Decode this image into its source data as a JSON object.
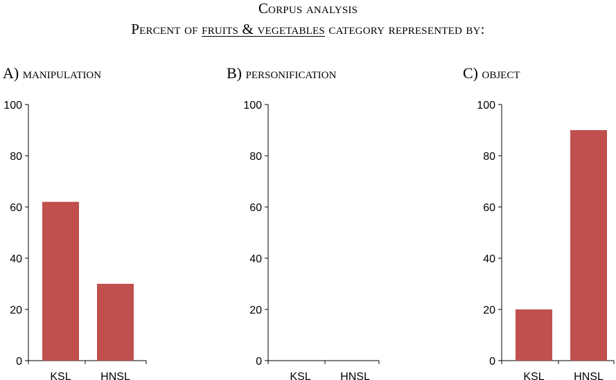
{
  "header": {
    "title": "Corpus analysis",
    "subtitle_prefix": "Percent of ",
    "subtitle_underlined": "fruits & vegetables",
    "subtitle_suffix": " category represented by:"
  },
  "colors": {
    "bar": "#c0504d",
    "axis": "#000000"
  },
  "chart_data": [
    {
      "type": "bar",
      "title": "A) manipulation",
      "categories": [
        "KSL",
        "HNSL"
      ],
      "values": [
        62,
        30
      ],
      "ylim": [
        0,
        100
      ],
      "yticks": [
        0,
        20,
        40,
        60,
        80,
        100
      ],
      "xlabel": "",
      "ylabel": "",
      "grid": false
    },
    {
      "type": "bar",
      "title": "B) personification",
      "categories": [
        "KSL",
        "HNSL"
      ],
      "values": [
        0,
        0
      ],
      "ylim": [
        0,
        100
      ],
      "yticks": [
        0,
        20,
        40,
        60,
        80,
        100
      ],
      "xlabel": "",
      "ylabel": "",
      "grid": false
    },
    {
      "type": "bar",
      "title": "C) object",
      "categories": [
        "KSL",
        "HNSL"
      ],
      "values": [
        20,
        90
      ],
      "ylim": [
        0,
        100
      ],
      "yticks": [
        0,
        20,
        40,
        60,
        80,
        100
      ],
      "xlabel": "",
      "ylabel": "",
      "grid": false
    }
  ]
}
